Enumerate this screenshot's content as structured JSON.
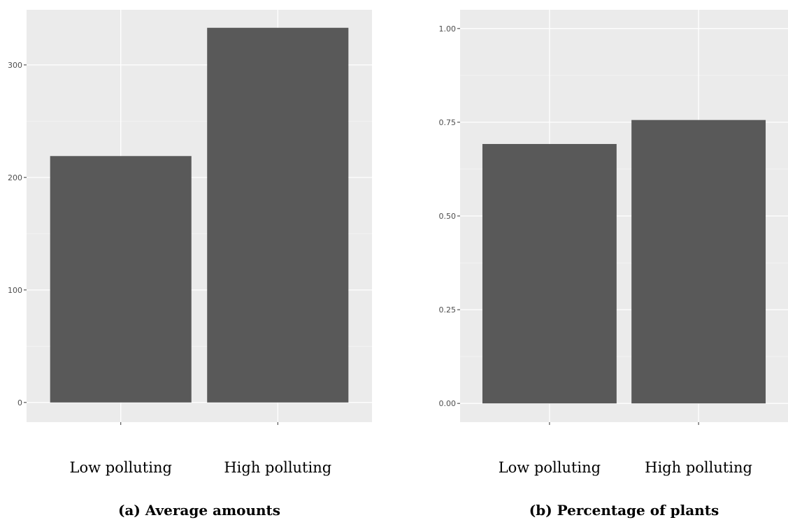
{
  "colors": {
    "panel_background": "#ebebeb",
    "grid_major": "#ffffff",
    "grid_minor": "#f5f5f5",
    "bar_fill": "#595959",
    "tick_color": "#333333"
  },
  "chart_data": [
    {
      "type": "bar",
      "title": "",
      "caption": "(a) Average amounts",
      "xlabel": "",
      "ylabel": "",
      "categories": [
        "Low polluting",
        "High polluting"
      ],
      "values": [
        219,
        333
      ],
      "ylim": [
        -17.5,
        349
      ],
      "yticks": [
        0,
        100,
        200,
        300
      ],
      "ytick_labels": [
        "0",
        "100",
        "200",
        "300"
      ],
      "grid": true,
      "legend": "none"
    },
    {
      "type": "bar",
      "title": "",
      "caption": "(b) Percentage of plants",
      "xlabel": "",
      "ylabel": "",
      "categories": [
        "Low polluting",
        "High polluting"
      ],
      "values": [
        0.692,
        0.756
      ],
      "ylim": [
        -0.05,
        1.05
      ],
      "yticks": [
        0,
        0.25,
        0.5,
        0.75,
        1.0
      ],
      "ytick_labels": [
        "0.00",
        "0.25",
        "0.50",
        "0.75",
        "1.00"
      ],
      "grid": true,
      "legend": "none"
    }
  ]
}
